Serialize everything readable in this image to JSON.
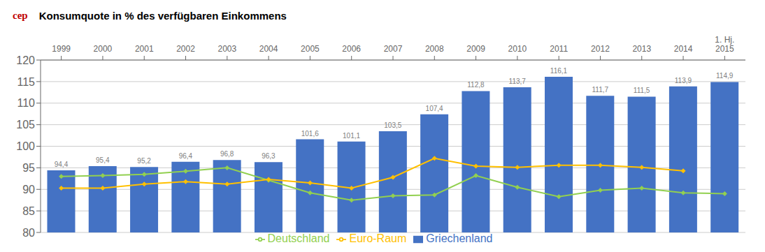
{
  "chart_data": {
    "type": "bar",
    "title": "Konsumquote in % des verfügbaren Einkommens",
    "annotations": [
      "cep"
    ],
    "categories": [
      "1999",
      "2000",
      "2001",
      "2002",
      "2003",
      "2004",
      "2005",
      "2006",
      "2007",
      "2008",
      "2009",
      "2010",
      "2011",
      "2012",
      "2013",
      "2014",
      "1. Hj.\n2015"
    ],
    "series": [
      {
        "name": "Griechenland",
        "type": "bar",
        "color": "#4472C4",
        "values": [
          94.4,
          95.4,
          95.2,
          96.4,
          96.8,
          96.3,
          101.6,
          101.1,
          103.5,
          107.4,
          112.8,
          113.7,
          116.1,
          111.7,
          111.5,
          113.9,
          114.9
        ],
        "value_labels": [
          "94,4",
          "95,4",
          "95,2",
          "96,4",
          "96,8",
          "96,3",
          "101,6",
          "101,1",
          "103,5",
          "107,4",
          "112,8",
          "113,7",
          "116,1",
          "111,7",
          "111,5",
          "113,9",
          "114,9"
        ],
        "data_labels": true
      },
      {
        "name": "Deutschland",
        "type": "line",
        "color": "#92D050",
        "marker": "diamond",
        "values": [
          93.0,
          93.2,
          93.5,
          94.2,
          95.0,
          92.1,
          89.2,
          87.5,
          88.5,
          88.7,
          93.2,
          90.5,
          88.3,
          89.8,
          90.3,
          89.2,
          89.0
        ]
      },
      {
        "name": "Euro-Raum",
        "type": "line",
        "color": "#FFC000",
        "marker": "diamond",
        "values": [
          90.3,
          90.3,
          91.2,
          91.8,
          91.2,
          92.3,
          91.5,
          90.3,
          92.8,
          97.2,
          95.4,
          95.1,
          95.6,
          95.6,
          95.1,
          94.3,
          null
        ]
      }
    ],
    "ylim": [
      80,
      120
    ],
    "yticks": [
      80,
      85,
      90,
      95,
      100,
      105,
      110,
      115,
      120
    ],
    "grid": true,
    "legend": "bottom"
  }
}
